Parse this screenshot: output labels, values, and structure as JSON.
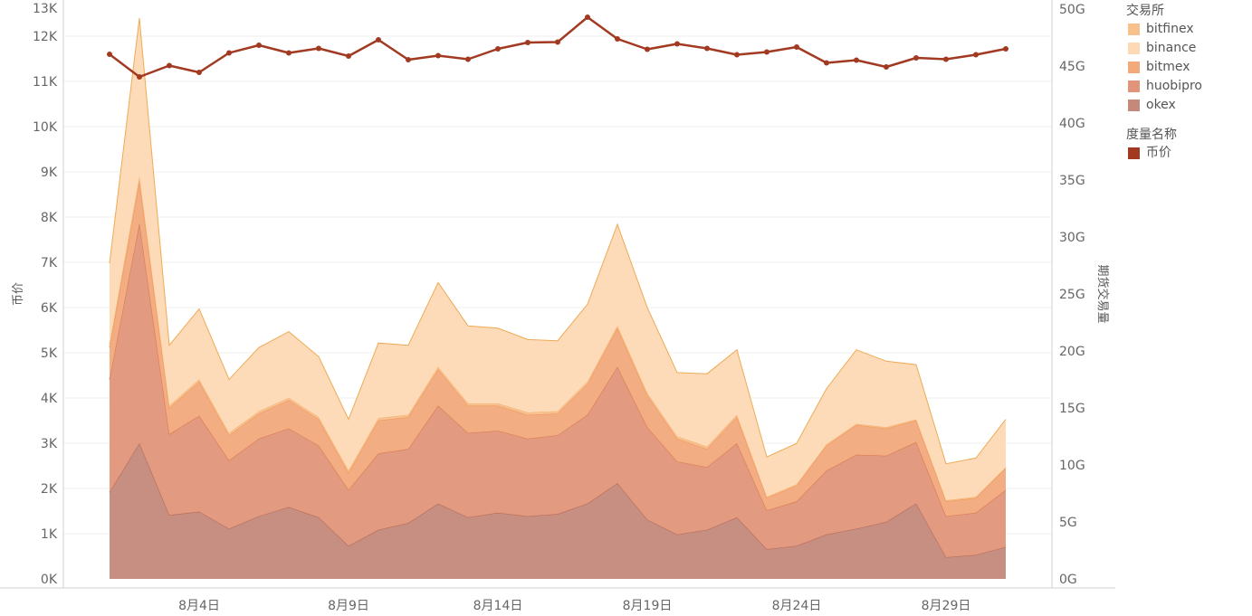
{
  "chart_data": {
    "type": "area",
    "stacked": true,
    "x": [
      "8月1日",
      "8月2日",
      "8月3日",
      "8月4日",
      "8月5日",
      "8月6日",
      "8月7日",
      "8月8日",
      "8月9日",
      "8月10日",
      "8月11日",
      "8月12日",
      "8月13日",
      "8月14日",
      "8月15日",
      "8月16日",
      "8月17日",
      "8月18日",
      "8月19日",
      "8月20日",
      "8月21日",
      "8月22日",
      "8月23日",
      "8月24日",
      "8月25日",
      "8月26日",
      "8月27日",
      "8月28日",
      "8月29日",
      "8月30日",
      "8月31日"
    ],
    "x_tick_labels": [
      "8月4日",
      "8月9日",
      "8月14日",
      "8月19日",
      "8月24日",
      "8月29日"
    ],
    "left_axis": {
      "label": "币价",
      "range": [
        0,
        13000
      ],
      "ticks": [
        0,
        1000,
        2000,
        3000,
        4000,
        5000,
        6000,
        7000,
        8000,
        9000,
        10000,
        11000,
        12000,
        13000
      ],
      "tick_labels": [
        "0K",
        "1K",
        "2K",
        "3K",
        "4K",
        "5K",
        "6K",
        "7K",
        "8K",
        "9K",
        "10K",
        "11K",
        "12K",
        "13K"
      ]
    },
    "right_axis": {
      "label": "期货交易量",
      "range": [
        0,
        51600000000
      ],
      "ticks": [
        0,
        5000000000,
        10000000000,
        15000000000,
        20000000000,
        25000000000,
        30000000000,
        35000000000,
        40000000000,
        45000000000,
        50000000000
      ],
      "tick_labels": [
        "0G",
        "5G",
        "10G",
        "15G",
        "20G",
        "25G",
        "30G",
        "35G",
        "40G",
        "45G",
        "50G"
      ]
    },
    "area_series_order_bottom_to_top": [
      "okex",
      "huobipro",
      "bitmex",
      "bitfinex",
      "binance"
    ],
    "series": [
      {
        "name": "okex",
        "axis": "right",
        "color": "#c4897a",
        "values": [
          7600000000.0,
          11900000000.0,
          5600000000.0,
          5900000000.0,
          4400000000.0,
          5500000000.0,
          6300000000.0,
          5400000000.0,
          2900000000.0,
          4300000000.0,
          4900000000.0,
          6600000000.0,
          5400000000.0,
          5800000000.0,
          5500000000.0,
          5700000000.0,
          6600000000.0,
          8400000000.0,
          5200000000.0,
          3900000000.0,
          4300000000.0,
          5400000000.0,
          2600000000.0,
          2900000000.0,
          3900000000.0,
          4400000000.0,
          5000000000.0,
          6600000000.0,
          1900000000.0,
          2100000000.0,
          2800000000.0
        ]
      },
      {
        "name": "huobipro",
        "axis": "right",
        "color": "#e0957a",
        "values": [
          9900000000.0,
          19300000000.0,
          7100000000.0,
          8400000000.0,
          6000000000.0,
          6800000000.0,
          6900000000.0,
          6300000000.0,
          4900000000.0,
          6700000000.0,
          6500000000.0,
          8600000000.0,
          7400000000.0,
          7200000000.0,
          6800000000.0,
          6900000000.0,
          7800000000.0,
          10200000000.0,
          8100000000.0,
          6400000000.0,
          5500000000.0,
          6500000000.0,
          3400000000.0,
          3900000000.0,
          5600000000.0,
          6500000000.0,
          5800000000.0,
          5400000000.0,
          3600000000.0,
          3700000000.0,
          5000000000.0
        ]
      },
      {
        "name": "bitmex",
        "axis": "right",
        "color": "#f2a97c",
        "values": [
          2800000000.0,
          3700000000.0,
          2300000000.0,
          3000000000.0,
          2200000000.0,
          2200000000.0,
          2500000000.0,
          2300000000.0,
          1500000000.0,
          2900000000.0,
          2800000000.0,
          3200000000.0,
          2400000000.0,
          2200000000.0,
          2100000000.0,
          1900000000.0,
          2700000000.0,
          3400000000.0,
          2800000000.0,
          2000000000.0,
          1600000000.0,
          2300000000.0,
          1100000000.0,
          1400000000.0,
          2200000000.0,
          2600000000.0,
          2400000000.0,
          1900000000.0,
          1300000000.0,
          1300000000.0,
          1900000000.0
        ]
      },
      {
        "name": "bitfinex",
        "axis": "right",
        "color": "#f8c08c",
        "values": [
          300000000.0,
          400000000.0,
          200000000.0,
          200000000.0,
          200000000.0,
          200000000.0,
          200000000.0,
          200000000.0,
          200000000.0,
          200000000.0,
          200000000.0,
          200000000.0,
          200000000.0,
          200000000.0,
          200000000.0,
          200000000.0,
          200000000.0,
          200000000.0,
          200000000.0,
          200000000.0,
          200000000.0,
          200000000.0,
          100000000.0,
          100000000.0,
          100000000.0,
          100000000.0,
          100000000.0,
          100000000.0,
          100000000.0,
          100000000.0,
          100000000.0
        ]
      },
      {
        "name": "binance",
        "axis": "right",
        "color": "#fdd9b5",
        "values": [
          7100000000.0,
          13900000000.0,
          5300000000.0,
          6200000000.0,
          4700000000.0,
          5600000000.0,
          5800000000.0,
          5300000000.0,
          4500000000.0,
          6600000000.0,
          6100000000.0,
          7400000000.0,
          6800000000.0,
          6600000000.0,
          6400000000.0,
          6200000000.0,
          6800000000.0,
          8900000000.0,
          7500000000.0,
          5600000000.0,
          6400000000.0,
          5700000000.0,
          3500000000.0,
          3600000000.0,
          4900000000.0,
          6500000000.0,
          5800000000.0,
          4800000000.0,
          3200000000.0,
          3400000000.0,
          4200000000.0
        ]
      },
      {
        "name": "币价",
        "axis": "left",
        "type": "line",
        "color": "#a23a22",
        "values": [
          11600,
          11100,
          11350,
          11200,
          11630,
          11800,
          11630,
          11730,
          11560,
          11920,
          11480,
          11570,
          11490,
          11720,
          11860,
          11870,
          12420,
          11940,
          11710,
          11830,
          11730,
          11590,
          11650,
          11760,
          11410,
          11470,
          11320,
          11520,
          11490,
          11590,
          11720
        ]
      }
    ],
    "legend": {
      "placement": "right",
      "groups": [
        {
          "title": "交易所",
          "items": [
            {
              "name": "bitfinex",
              "color": "#f8c08c"
            },
            {
              "name": "binance",
              "color": "#fdd9b5"
            },
            {
              "name": "bitmex",
              "color": "#f2a97c"
            },
            {
              "name": "huobipro",
              "color": "#e0957a"
            },
            {
              "name": "okex",
              "color": "#c4897a"
            }
          ]
        },
        {
          "title": "度量名称",
          "items": [
            {
              "name": "币价",
              "color": "#a23a22"
            }
          ]
        }
      ]
    },
    "grid": true
  }
}
